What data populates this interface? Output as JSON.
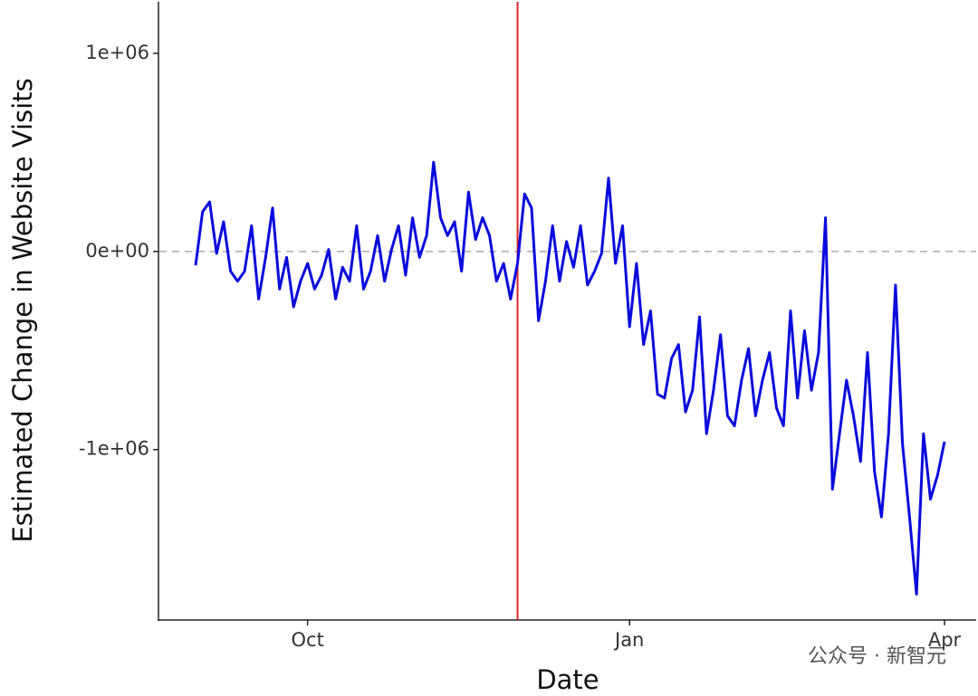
{
  "chart_data": {
    "type": "line",
    "x_label": "Date",
    "y_label": "Estimated Change in Website Visits",
    "categories": [
      null,
      null,
      null,
      null,
      null,
      null,
      null,
      null,
      null,
      null,
      null,
      null,
      null,
      null,
      null,
      null,
      "Oct",
      null,
      null,
      null,
      null,
      null,
      null,
      null,
      null,
      null,
      null,
      null,
      null,
      null,
      null,
      null,
      null,
      null,
      null,
      null,
      null,
      null,
      null,
      null,
      null,
      null,
      null,
      null,
      null,
      null,
      null,
      null,
      null,
      null,
      null,
      null,
      null,
      null,
      null,
      null,
      null,
      null,
      null,
      null,
      null,
      null,
      "Jan",
      null,
      null,
      null,
      null,
      null,
      null,
      null,
      null,
      null,
      null,
      null,
      null,
      null,
      null,
      null,
      null,
      null,
      null,
      null,
      null,
      null,
      null,
      null,
      null,
      null,
      null,
      null,
      null,
      null,
      null,
      null,
      null,
      null,
      null,
      null,
      null,
      null,
      null,
      null,
      null,
      null,
      null,
      null,
      null,
      "Apr"
    ],
    "series": [
      {
        "color": "#0a0adc",
        "values": [
          -70000,
          200000,
          250000,
          -10000,
          150000,
          -100000,
          -150000,
          -100000,
          130000,
          -240000,
          -30000,
          220000,
          -190000,
          -30000,
          -280000,
          -150000,
          -60000,
          -190000,
          -120000,
          10000,
          -240000,
          -80000,
          -150000,
          130000,
          -190000,
          -100000,
          80000,
          -150000,
          10000,
          130000,
          -120000,
          170000,
          -30000,
          80000,
          450000,
          170000,
          80000,
          150000,
          -100000,
          300000,
          60000,
          170000,
          80000,
          -150000,
          -60000,
          -240000,
          -60000,
          290000,
          220000,
          -350000,
          -150000,
          130000,
          -150000,
          50000,
          -80000,
          130000,
          -170000,
          -100000,
          -10000,
          370000,
          -60000,
          130000,
          -380000,
          -60000,
          -470000,
          -300000,
          -720000,
          -740000,
          -540000,
          -470000,
          -810000,
          -700000,
          -330000,
          -920000,
          -700000,
          -420000,
          -830000,
          -880000,
          -650000,
          -490000,
          -830000,
          -650000,
          -510000,
          -790000,
          -880000,
          -300000,
          -740000,
          -400000,
          -700000,
          -510000,
          170000,
          -1200000,
          -920000,
          -650000,
          -830000,
          -1060000,
          -510000,
          -1110000,
          -1340000,
          -920000,
          -170000,
          -970000,
          -1340000,
          -1730000,
          -920000,
          -1250000,
          -1130000,
          -960000
        ]
      }
    ],
    "ylim": [
      -1860000,
      1260000
    ],
    "yticks": [
      {
        "value": -1000000,
        "label": "-1e+06"
      },
      {
        "value": 0,
        "label": "0e+00"
      },
      {
        "value": 1000000,
        "label": "1e+06"
      }
    ],
    "zero_line": true,
    "vline": {
      "at": 46,
      "color": "#d9262b"
    },
    "watermark": "公众号 · 新智元"
  }
}
